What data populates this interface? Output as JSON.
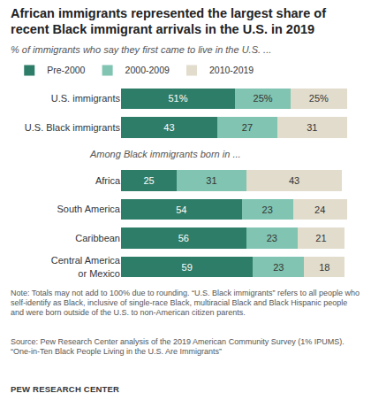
{
  "chart_data": {
    "type": "bar",
    "orientation": "horizontal",
    "stacked": true,
    "data_labels": true,
    "tick_labels": "y",
    "grid": false,
    "legend": "top",
    "title": "African immigrants represented the largest share of recent Black immigrant arrivals in the U.S. in 2019",
    "subtitle": "% of immigrants who say they first came to live in the U.S. ...",
    "categories": [
      "U.S. immigrants",
      "U.S. Black immigrants",
      "Africa",
      "South America",
      "Caribbean",
      "Central America or Mexico"
    ],
    "annotations": [
      {
        "text": "Among Black immigrants born in ...",
        "before": "Africa"
      }
    ],
    "series": [
      {
        "name": "Pre-2000",
        "color": "#2e7d68",
        "values": [
          51,
          43,
          25,
          54,
          56,
          59
        ],
        "value_labels": [
          "51%",
          "43",
          "25",
          "54",
          "56",
          "59"
        ]
      },
      {
        "name": "2000-2009",
        "color": "#80c4b1",
        "values": [
          25,
          27,
          31,
          23,
          23,
          23
        ],
        "value_labels": [
          "25%",
          "27",
          "31",
          "23",
          "23",
          "23"
        ]
      },
      {
        "name": "2010-2019",
        "color": "#e2dccd",
        "values": [
          25,
          31,
          43,
          24,
          21,
          18
        ],
        "value_labels": [
          "25%",
          "31",
          "43",
          "24",
          "21",
          "18"
        ]
      }
    ],
    "note": "Note: Totals may not add to 100% due to rounding. “U.S. Black immigrants” refers to all people who self-identify as Black, inclusive of single-race Black, multiracial Black and Black Hispanic people and were born outside of the U.S. to non-American citizen parents.",
    "source": [
      "Source: Pew Research Center analysis of the 2019 American Community Survey (1% IPUMS).",
      "“One-in-Ten Black People Living in the U.S. Are Immigrants”"
    ],
    "credit": "PEW RESEARCH CENTER"
  }
}
